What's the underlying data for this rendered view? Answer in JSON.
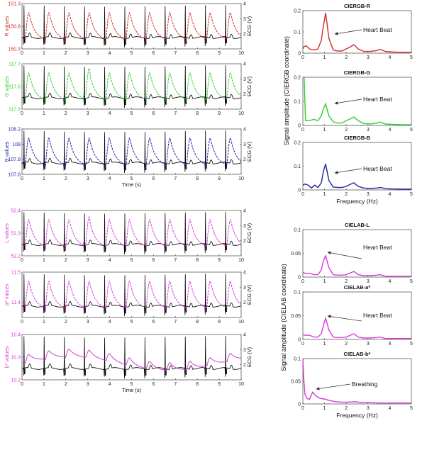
{
  "colors": {
    "red": "#d42a2a",
    "green": "#2fcf2f",
    "blue": "#1f1fa8",
    "magenta": "#d63ad6",
    "ecg": "#000000",
    "axis_label_blue": "#1f5fbf"
  },
  "chart_data": [
    {
      "type": "line",
      "id": "R",
      "ylabel": "R values",
      "ylabel_right": "ECG (V)",
      "ylim": [
        150.3,
        151.3
      ],
      "yticks": [
        "150.3",
        "150.8",
        "151.3"
      ],
      "y2lim": [
        1,
        4
      ],
      "y2ticks": [
        "2",
        "3",
        "4"
      ],
      "xlim": [
        0,
        10
      ],
      "xticks": [
        "0",
        "1",
        "2",
        "3",
        "4",
        "5",
        "6",
        "7",
        "8",
        "9",
        "10"
      ],
      "xlabel": "",
      "series": [
        {
          "name": "",
          "color_key": "red",
          "dashed": true
        },
        {
          "name": "",
          "color_key": "ecg"
        }
      ]
    },
    {
      "type": "line",
      "id": "G",
      "ylabel": "G values",
      "ylabel_right": "ECG (V)",
      "ylim": [
        117.3,
        117.7
      ],
      "yticks": [
        "117.3",
        "117.5",
        "117.7"
      ],
      "y2lim": [
        1,
        4
      ],
      "y2ticks": [
        "2",
        "3",
        "4"
      ],
      "xlim": [
        0,
        10
      ],
      "xticks": [
        "0",
        "1",
        "2",
        "3",
        "4",
        "5",
        "6",
        "7",
        "8",
        "9",
        "10"
      ],
      "xlabel": "",
      "series": [
        {
          "name": "",
          "color_key": "green",
          "dashed": true
        },
        {
          "name": "",
          "color_key": "ecg"
        }
      ]
    },
    {
      "type": "line",
      "id": "B",
      "ylabel": "B values",
      "ylabel_right": "ECG (V)",
      "ylim": [
        107.6,
        108.2
      ],
      "yticks": [
        "107.6",
        "107.8",
        "108",
        "108.2"
      ],
      "y2lim": [
        1,
        4
      ],
      "y2ticks": [
        "2",
        "3",
        "4"
      ],
      "xlim": [
        0,
        10
      ],
      "xticks": [
        "0",
        "1",
        "2",
        "3",
        "4",
        "5",
        "6",
        "7",
        "8",
        "9",
        "10"
      ],
      "xlabel": "Time (s)",
      "series": [
        {
          "name": "",
          "color_key": "blue",
          "dashed": true
        },
        {
          "name": "",
          "color_key": "ecg"
        }
      ]
    },
    {
      "type": "line",
      "id": "L",
      "ylabel": "L values",
      "ylabel_right": "ECG (V)",
      "ylim": [
        52.2,
        52.4
      ],
      "yticks": [
        "52.2",
        "52.3",
        "52.4"
      ],
      "y2lim": [
        1,
        4
      ],
      "y2ticks": [
        "2",
        "3",
        "4"
      ],
      "xlim": [
        0,
        10
      ],
      "xticks": [
        "0",
        "1",
        "2",
        "3",
        "4",
        "5",
        "6",
        "7",
        "8",
        "9",
        "10"
      ],
      "xlabel": "",
      "series": [
        {
          "name": "",
          "color_key": "magenta",
          "dashed": true
        },
        {
          "name": "",
          "color_key": "ecg"
        }
      ]
    },
    {
      "type": "line",
      "id": "a",
      "ylabel": "a* values",
      "ylabel_right": "ECG (V)",
      "ylim": [
        11.35,
        11.5
      ],
      "yticks": [
        "11.4",
        "11.5"
      ],
      "y2lim": [
        1,
        4
      ],
      "y2ticks": [
        "2",
        "3",
        "4"
      ],
      "xlim": [
        0,
        10
      ],
      "xticks": [
        "0",
        "1",
        "2",
        "3",
        "4",
        "5",
        "6",
        "7",
        "8",
        "9",
        "10"
      ],
      "xlabel": "",
      "series": [
        {
          "name": "",
          "color_key": "magenta",
          "dashed": true
        },
        {
          "name": "",
          "color_key": "ecg"
        }
      ]
    },
    {
      "type": "line",
      "id": "bstar",
      "ylabel": "b* values",
      "ylabel_right": "ECG (V)",
      "ylim": [
        10.2,
        10.4
      ],
      "yticks": [
        "10.2",
        "10.3",
        "10.4"
      ],
      "y2lim": [
        1,
        4
      ],
      "y2ticks": [
        "2",
        "3",
        "4"
      ],
      "xlim": [
        0,
        10
      ],
      "xticks": [
        "0",
        "1",
        "2",
        "3",
        "4",
        "5",
        "6",
        "7",
        "8",
        "9",
        "10"
      ],
      "xlabel": "Time (s)",
      "series": [
        {
          "name": "",
          "color_key": "magenta",
          "dashed": false
        },
        {
          "name": "",
          "color_key": "ecg"
        }
      ]
    },
    {
      "type": "line",
      "id": "fR",
      "title": "CIERGB-R",
      "xlim": [
        0,
        5
      ],
      "ylim": [
        0,
        0.2
      ],
      "xticks": [
        "0",
        "1",
        "2",
        "3",
        "4",
        "5"
      ],
      "yticks": [
        "0",
        "0.1",
        "0.2"
      ],
      "xlabel": "",
      "color_key": "red",
      "x": [
        0,
        0.05,
        0.15,
        0.3,
        0.5,
        0.7,
        0.85,
        0.95,
        1.05,
        1.2,
        1.4,
        1.6,
        1.8,
        2.0,
        2.2,
        2.35,
        2.55,
        2.8,
        3.1,
        3.4,
        3.55,
        3.8,
        4.2,
        4.6,
        5.0
      ],
      "y": [
        0.02,
        0.03,
        0.035,
        0.02,
        0.015,
        0.02,
        0.06,
        0.13,
        0.19,
        0.07,
        0.015,
        0.01,
        0.01,
        0.02,
        0.03,
        0.04,
        0.02,
        0.008,
        0.008,
        0.012,
        0.018,
        0.008,
        0.005,
        0.004,
        0.004
      ]
    },
    {
      "type": "line",
      "id": "fG",
      "title": "CIERGB-G",
      "xlim": [
        0,
        5
      ],
      "ylim": [
        0,
        0.2
      ],
      "xticks": [
        "0",
        "1",
        "2",
        "3",
        "4",
        "5"
      ],
      "yticks": [
        "0",
        "0.1",
        "0.2"
      ],
      "xlabel": "",
      "color_key": "green",
      "x": [
        0,
        0.06,
        0.12,
        0.3,
        0.5,
        0.7,
        0.85,
        0.95,
        1.05,
        1.2,
        1.4,
        1.6,
        1.8,
        2.0,
        2.2,
        2.35,
        2.55,
        2.8,
        3.1,
        3.4,
        3.55,
        3.8,
        4.2,
        4.6,
        5.0
      ],
      "y": [
        0.2,
        0.2,
        0.02,
        0.02,
        0.025,
        0.02,
        0.04,
        0.07,
        0.09,
        0.04,
        0.015,
        0.01,
        0.01,
        0.02,
        0.028,
        0.035,
        0.02,
        0.008,
        0.006,
        0.01,
        0.014,
        0.006,
        0.004,
        0.003,
        0.003
      ]
    },
    {
      "type": "line",
      "id": "fB",
      "title": "CIERGB-B",
      "xlim": [
        0,
        5
      ],
      "ylim": [
        0,
        0.2
      ],
      "xticks": [
        "0",
        "1",
        "2",
        "3",
        "4",
        "5"
      ],
      "yticks": [
        "0",
        "0.1",
        "0.2"
      ],
      "xlabel": "Frequency (Hz)",
      "color_key": "blue",
      "x": [
        0,
        0.1,
        0.25,
        0.4,
        0.55,
        0.7,
        0.85,
        0.95,
        1.05,
        1.2,
        1.4,
        1.6,
        1.8,
        2.0,
        2.15,
        2.35,
        2.55,
        2.8,
        3.1,
        3.4,
        3.6,
        3.8,
        4.2,
        4.6,
        5.0
      ],
      "y": [
        0.02,
        0.025,
        0.02,
        0.008,
        0.02,
        0.01,
        0.03,
        0.08,
        0.11,
        0.04,
        0.012,
        0.01,
        0.01,
        0.015,
        0.022,
        0.03,
        0.015,
        0.008,
        0.006,
        0.008,
        0.01,
        0.005,
        0.004,
        0.003,
        0.003
      ]
    },
    {
      "type": "line",
      "id": "fL",
      "title": "CIELAB-L",
      "xlim": [
        0,
        5
      ],
      "ylim": [
        0,
        0.1
      ],
      "xticks": [
        "0",
        "1",
        "2",
        "3",
        "4",
        "5"
      ],
      "yticks": [
        "0",
        "0.05",
        "0.1"
      ],
      "xlabel": "",
      "color_key": "magenta",
      "x": [
        0,
        0.1,
        0.3,
        0.5,
        0.7,
        0.85,
        0.95,
        1.05,
        1.2,
        1.4,
        1.6,
        1.8,
        2.0,
        2.15,
        2.35,
        2.55,
        2.8,
        3.1,
        3.4,
        3.55,
        3.8,
        4.2,
        4.6,
        5.0
      ],
      "y": [
        0.01,
        0.008,
        0.008,
        0.005,
        0.005,
        0.015,
        0.035,
        0.045,
        0.02,
        0.005,
        0.004,
        0.004,
        0.005,
        0.008,
        0.012,
        0.005,
        0.003,
        0.003,
        0.004,
        0.005,
        0.002,
        0.002,
        0.002,
        0.002
      ]
    },
    {
      "type": "line",
      "id": "fa",
      "title": "CIELAB-a*",
      "xlim": [
        0,
        5
      ],
      "ylim": [
        0,
        0.1
      ],
      "xticks": [
        "0",
        "1",
        "2",
        "3",
        "4",
        "5"
      ],
      "yticks": [
        "0",
        "0.05",
        "0.1"
      ],
      "xlabel": "",
      "color_key": "magenta",
      "x": [
        0,
        0.1,
        0.3,
        0.5,
        0.7,
        0.85,
        0.95,
        1.05,
        1.2,
        1.4,
        1.6,
        1.8,
        2.0,
        2.15,
        2.35,
        2.55,
        2.8,
        3.1,
        3.4,
        3.55,
        3.8,
        4.2,
        4.6,
        5.0
      ],
      "y": [
        0.01,
        0.009,
        0.009,
        0.005,
        0.005,
        0.012,
        0.03,
        0.045,
        0.02,
        0.005,
        0.004,
        0.004,
        0.005,
        0.008,
        0.012,
        0.005,
        0.003,
        0.003,
        0.004,
        0.005,
        0.002,
        0.002,
        0.002,
        0.002
      ]
    },
    {
      "type": "line",
      "id": "fb",
      "title": "CIELAB-b*",
      "xlim": [
        0,
        5
      ],
      "ylim": [
        0,
        0.1
      ],
      "xticks": [
        "0",
        "1",
        "2",
        "3",
        "4",
        "5"
      ],
      "yticks": [
        "0",
        "0.05",
        "0.1"
      ],
      "xlabel": "Frequency (Hz)",
      "color_key": "magenta",
      "x": [
        0,
        0.05,
        0.1,
        0.2,
        0.3,
        0.45,
        0.6,
        0.8,
        1.0,
        1.2,
        1.5,
        1.8,
        2.1,
        2.4,
        2.7,
        3.0,
        3.5,
        4.0,
        4.5,
        5.0
      ],
      "y": [
        0.1,
        0.05,
        0.02,
        0.012,
        0.01,
        0.026,
        0.018,
        0.012,
        0.011,
        0.008,
        0.005,
        0.004,
        0.004,
        0.005,
        0.003,
        0.003,
        0.002,
        0.002,
        0.002,
        0.002
      ]
    }
  ],
  "annotations": {
    "heart_beat": "Heart Beat",
    "breathing": "Breathing"
  },
  "shared_ylabels": {
    "rgb": "Signal amplitude (CIERGB coordinate)",
    "lab": "Signal amplitude (CIELAB coordinate)"
  }
}
